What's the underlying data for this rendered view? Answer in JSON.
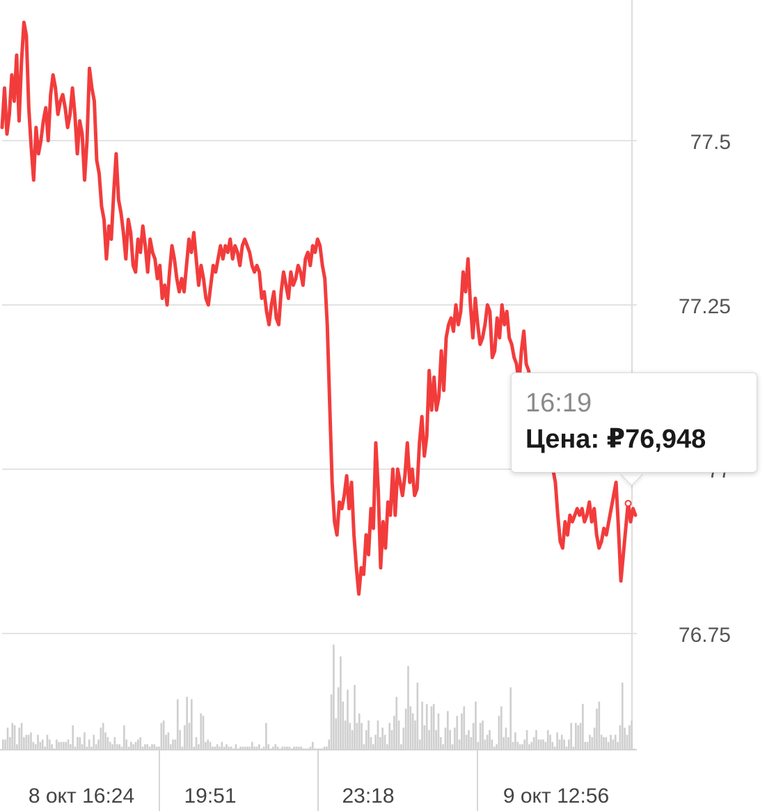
{
  "chart_data": {
    "type": "line",
    "title": "",
    "xlabel": "",
    "ylabel": "",
    "ylim": [
      76.72,
      77.71
    ],
    "y_ticks": [
      "77.5",
      "77.25",
      "77",
      "76.75"
    ],
    "y_tick_values": [
      77.5,
      77.25,
      77.0,
      76.75
    ],
    "x_ticks": [
      "8 окт 16:24",
      "19:51",
      "23:18",
      "9 окт 12:56"
    ],
    "grid": true,
    "legend": "none",
    "line_color": "#f23c3c",
    "volume_color": "#cfcfcf",
    "series": [
      {
        "values": [
          77.52,
          77.58,
          77.51,
          77.54,
          77.6,
          77.56,
          77.63,
          77.53,
          77.62,
          77.68,
          77.66,
          77.55,
          77.49,
          77.44,
          77.52,
          77.48,
          77.5,
          77.53,
          77.55,
          77.5,
          77.57,
          77.6,
          77.58,
          77.54,
          77.56,
          77.57,
          77.55,
          77.52,
          77.54,
          77.58,
          77.54,
          77.48,
          77.53,
          77.51,
          77.44,
          77.5,
          77.61,
          77.58,
          77.56,
          77.47,
          77.45,
          77.4,
          77.38,
          77.32,
          77.37,
          77.35,
          77.42,
          77.48,
          77.41,
          77.39,
          77.36,
          77.32,
          77.38,
          77.36,
          77.31,
          77.3,
          77.35,
          77.33,
          77.37,
          77.34,
          77.3,
          77.35,
          77.33,
          77.32,
          77.29,
          77.31,
          77.26,
          77.28,
          77.25,
          77.3,
          77.34,
          77.32,
          77.29,
          77.27,
          77.29,
          77.27,
          77.31,
          77.35,
          77.33,
          77.36,
          77.32,
          77.28,
          77.31,
          77.29,
          77.26,
          77.25,
          77.28,
          77.31,
          77.3,
          77.32,
          77.34,
          77.32,
          77.34,
          77.33,
          77.35,
          77.32,
          77.34,
          77.33,
          77.31,
          77.34,
          77.35,
          77.34,
          77.33,
          77.31,
          77.3,
          77.31,
          77.3,
          77.26,
          77.27,
          77.24,
          77.22,
          77.25,
          77.27,
          77.23,
          77.22,
          77.27,
          77.3,
          77.28,
          77.26,
          77.3,
          77.28,
          77.29,
          77.31,
          77.3,
          77.28,
          77.32,
          77.33,
          77.31,
          77.34,
          77.33,
          77.35,
          77.34,
          77.31,
          77.29,
          77.22,
          77.1,
          76.98,
          76.92,
          76.9,
          76.95,
          76.94,
          76.96,
          76.99,
          76.94,
          76.98,
          76.9,
          76.85,
          76.81,
          76.85,
          76.84,
          76.9,
          76.87,
          76.94,
          76.91,
          77.04,
          76.97,
          76.85,
          76.92,
          76.88,
          76.95,
          76.93,
          77.0,
          76.93,
          77.0,
          76.98,
          76.96,
          76.99,
          77.04,
          76.98,
          77.0,
          76.96,
          76.97,
          77.04,
          77.08,
          77.02,
          77.05,
          77.15,
          77.09,
          77.14,
          77.09,
          77.11,
          77.18,
          77.12,
          77.2,
          77.22,
          77.23,
          77.21,
          77.25,
          77.22,
          77.24,
          77.3,
          77.27,
          77.32,
          77.25,
          77.2,
          77.26,
          77.22,
          77.19,
          77.2,
          77.22,
          77.25,
          77.24,
          77.17,
          77.18,
          77.23,
          77.2,
          77.25,
          77.22,
          77.24,
          77.2,
          77.19,
          77.17,
          77.16,
          77.13,
          77.18,
          77.21,
          77.16,
          77.15,
          77.12,
          77.1,
          77.14,
          77.12,
          77.04,
          77.09,
          77.06,
          77.03,
          77.05,
          77.0,
          76.98,
          76.93,
          76.89,
          76.88,
          76.92,
          76.9,
          76.93,
          76.92,
          76.93,
          76.94,
          76.93,
          76.94,
          76.92,
          76.93,
          76.95,
          76.92,
          76.94,
          76.9,
          76.88,
          76.89,
          76.91,
          76.9,
          76.92,
          76.94,
          76.96,
          76.98,
          76.91,
          76.83,
          76.87,
          76.91,
          76.95,
          76.92,
          76.94,
          76.93
        ]
      }
    ],
    "volume_values": [
      4,
      4,
      9,
      5,
      11,
      10,
      2,
      9,
      11,
      5,
      6,
      6,
      7,
      3,
      2,
      6,
      3,
      4,
      1,
      6,
      4,
      2,
      0,
      4,
      3,
      3,
      3,
      3,
      4,
      2,
      10,
      1,
      5,
      5,
      2,
      7,
      1,
      4,
      1,
      6,
      2,
      4,
      9,
      11,
      7,
      5,
      3,
      2,
      5,
      2,
      2,
      1,
      10,
      4,
      1,
      3,
      2,
      3,
      4,
      5,
      1,
      2,
      2,
      1,
      2,
      2,
      1,
      1,
      11,
      12,
      6,
      7,
      2,
      4,
      4,
      21,
      8,
      1,
      10,
      22,
      11,
      21,
      1,
      5,
      2,
      15,
      14,
      3,
      4,
      3,
      1,
      1,
      2,
      1,
      3,
      1,
      2,
      1,
      1,
      0,
      2,
      0,
      1,
      1,
      1,
      1,
      1,
      3,
      1,
      1,
      2,
      0,
      1,
      11,
      2,
      0,
      1,
      2,
      1,
      0,
      1,
      1,
      1,
      1,
      0,
      1,
      1,
      1,
      1,
      0,
      0,
      0,
      1,
      3,
      0,
      0,
      0,
      0,
      1,
      1,
      4,
      23,
      44,
      13,
      26,
      39,
      20,
      12,
      25,
      11,
      8,
      27,
      11,
      15,
      11,
      2,
      8,
      12,
      5,
      2,
      6,
      12,
      5,
      9,
      6,
      2,
      11,
      8,
      14,
      22,
      12,
      2,
      9,
      17,
      35,
      18,
      15,
      12,
      28,
      4,
      20,
      10,
      19,
      8,
      18,
      19,
      8,
      15,
      5,
      2,
      9,
      16,
      8,
      2,
      9,
      14,
      4,
      15,
      18,
      6,
      8,
      5,
      11,
      20,
      3,
      11,
      12,
      4,
      6,
      8,
      4,
      1,
      2,
      14,
      18,
      5,
      9,
      5,
      26,
      3,
      7,
      3,
      2,
      2,
      4,
      8,
      2,
      3,
      5,
      8,
      4,
      4,
      4,
      3,
      8,
      6,
      3,
      1,
      7,
      4,
      6,
      4,
      1,
      4,
      11,
      1,
      11,
      10,
      11,
      19,
      3,
      3,
      6,
      5,
      9,
      17,
      20,
      6,
      5,
      5,
      3,
      6,
      4,
      6,
      3,
      10,
      28,
      9,
      6,
      10,
      12,
      0
    ]
  },
  "tooltip": {
    "time": "16:19",
    "price": "Цена: ₽76,948"
  }
}
